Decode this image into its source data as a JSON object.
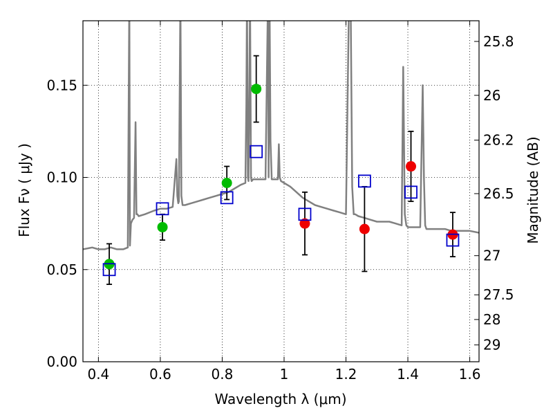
{
  "chart_data": {
    "type": "scatter",
    "xlabel": "Wavelength  λ (μm)",
    "ylabel": "Flux  Fν  ( μJy )",
    "y2label": "Magnitude (AB)",
    "xlim": [
      0.35,
      1.63
    ],
    "ylim": [
      0.0,
      0.185
    ],
    "grid": true,
    "x_ticks": [
      0.4,
      0.6,
      0.8,
      1.0,
      1.2,
      1.4,
      1.6
    ],
    "x_tick_labels": [
      "0.4",
      "0.6",
      "0.8",
      "1",
      "1.2",
      "1.4",
      "1.6"
    ],
    "y_ticks": [
      0.0,
      0.05,
      0.1,
      0.15
    ],
    "y_tick_labels": [
      "0.00",
      "0.05",
      "0.10",
      "0.15"
    ],
    "y2_ticks": [
      {
        "label": "25.8",
        "mag": 25.8
      },
      {
        "label": "26",
        "mag": 26.0
      },
      {
        "label": "26.2",
        "mag": 26.2
      },
      {
        "label": "26.5",
        "mag": 26.5
      },
      {
        "label": "27",
        "mag": 27.0
      },
      {
        "label": "27.5",
        "mag": 27.5
      },
      {
        "label": "28",
        "mag": 28.0
      },
      {
        "label": "29",
        "mag": 29.0
      }
    ],
    "colors": {
      "spectrum": "#808080",
      "green_points": "#00bb00",
      "red_points": "#ee0000",
      "model_squares": "#0000cc",
      "errorbar": "#000000"
    },
    "series": [
      {
        "kind": "spectrum",
        "x": [
          0.35,
          0.38,
          0.4,
          0.42,
          0.44,
          0.46,
          0.48,
          0.495,
          0.5,
          0.502,
          0.505,
          0.51,
          0.515,
          0.52,
          0.523,
          0.526,
          0.53,
          0.55,
          0.58,
          0.6,
          0.62,
          0.64,
          0.652,
          0.655,
          0.658,
          0.66,
          0.665,
          0.668,
          0.672,
          0.675,
          0.68,
          0.7,
          0.72,
          0.74,
          0.76,
          0.78,
          0.8,
          0.82,
          0.84,
          0.86,
          0.875,
          0.878,
          0.88,
          0.883,
          0.885,
          0.888,
          0.89,
          0.893,
          0.895,
          0.9,
          0.92,
          0.94,
          0.948,
          0.95,
          0.953,
          0.956,
          0.96,
          0.98,
          0.983,
          0.986,
          0.99,
          1.0,
          1.02,
          1.04,
          1.06,
          1.08,
          1.1,
          1.12,
          1.14,
          1.16,
          1.18,
          1.2,
          1.21,
          1.212,
          1.215,
          1.22,
          1.225,
          1.23,
          1.24,
          1.26,
          1.28,
          1.3,
          1.32,
          1.34,
          1.36,
          1.38,
          1.385,
          1.39,
          1.395,
          1.4,
          1.42,
          1.44,
          1.448,
          1.452,
          1.456,
          1.46,
          1.48,
          1.5,
          1.52,
          1.54,
          1.56,
          1.58,
          1.6,
          1.63
        ],
        "y": [
          0.061,
          0.062,
          0.061,
          0.061,
          0.062,
          0.061,
          0.061,
          0.062,
          0.2,
          0.063,
          0.075,
          0.077,
          0.078,
          0.13,
          0.08,
          0.08,
          0.079,
          0.08,
          0.082,
          0.083,
          0.083,
          0.084,
          0.11,
          0.09,
          0.086,
          0.087,
          0.2,
          0.09,
          0.085,
          0.085,
          0.085,
          0.086,
          0.087,
          0.088,
          0.089,
          0.09,
          0.091,
          0.092,
          0.094,
          0.096,
          0.097,
          0.14,
          0.2,
          0.1,
          0.098,
          0.15,
          0.2,
          0.1,
          0.098,
          0.099,
          0.099,
          0.099,
          0.2,
          0.1,
          0.2,
          0.12,
          0.099,
          0.099,
          0.118,
          0.1,
          0.098,
          0.097,
          0.095,
          0.092,
          0.089,
          0.087,
          0.085,
          0.084,
          0.083,
          0.082,
          0.081,
          0.08,
          0.2,
          0.2,
          0.2,
          0.095,
          0.08,
          0.08,
          0.079,
          0.078,
          0.077,
          0.076,
          0.076,
          0.076,
          0.075,
          0.074,
          0.16,
          0.08,
          0.074,
          0.073,
          0.073,
          0.073,
          0.15,
          0.1,
          0.074,
          0.072,
          0.072,
          0.072,
          0.072,
          0.071,
          0.071,
          0.071,
          0.071,
          0.07
        ]
      },
      {
        "kind": "observed",
        "color": "green",
        "points": [
          {
            "x": 0.435,
            "y": 0.053,
            "err": 0.011
          },
          {
            "x": 0.607,
            "y": 0.073,
            "err": 0.007
          },
          {
            "x": 0.815,
            "y": 0.097,
            "err": 0.009
          },
          {
            "x": 0.91,
            "y": 0.148,
            "err": 0.018
          }
        ]
      },
      {
        "kind": "observed",
        "color": "red",
        "points": [
          {
            "x": 1.067,
            "y": 0.075,
            "err": 0.017
          },
          {
            "x": 1.26,
            "y": 0.072,
            "err": 0.023
          },
          {
            "x": 1.41,
            "y": 0.106,
            "err": 0.019
          },
          {
            "x": 1.545,
            "y": 0.069,
            "err": 0.012
          }
        ]
      },
      {
        "kind": "model",
        "marker": "square",
        "points": [
          {
            "x": 0.435,
            "y": 0.05
          },
          {
            "x": 0.607,
            "y": 0.083
          },
          {
            "x": 0.815,
            "y": 0.089
          },
          {
            "x": 0.91,
            "y": 0.114
          },
          {
            "x": 1.067,
            "y": 0.08
          },
          {
            "x": 1.26,
            "y": 0.098
          },
          {
            "x": 1.41,
            "y": 0.092
          },
          {
            "x": 1.545,
            "y": 0.066
          }
        ]
      }
    ]
  }
}
